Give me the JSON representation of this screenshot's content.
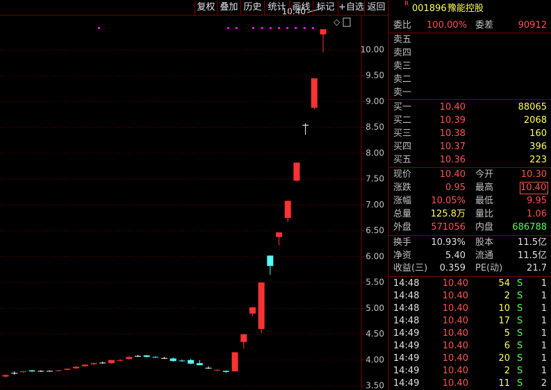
{
  "toolbar": [
    "复权",
    "叠加",
    "历史",
    "统计",
    "画线",
    "标记",
    "+自选",
    "返回"
  ],
  "chart_data": {
    "type": "candlestick",
    "open": [
      3.68,
      3.75,
      3.77,
      3.8,
      3.79,
      3.79,
      3.79,
      3.81,
      3.84,
      3.88,
      3.92,
      3.95,
      3.94,
      3.99,
      4.02,
      4.08,
      4.09,
      4.06,
      4.04,
      4.03,
      3.99,
      4.0,
      3.94,
      3.85,
      3.8,
      3.79,
      3.78,
      4.35,
      4.9,
      4.6,
      6.02,
      6.38,
      6.75,
      7.47,
      8.55,
      8.88,
      10.3
    ],
    "high": [
      3.72,
      3.78,
      3.79,
      3.81,
      3.8,
      3.8,
      3.81,
      3.84,
      3.88,
      3.92,
      3.95,
      3.97,
      4.0,
      4.02,
      4.07,
      4.1,
      4.1,
      4.07,
      4.06,
      4.05,
      4.01,
      4.02,
      4.0,
      3.88,
      3.82,
      3.8,
      4.15,
      4.5,
      5.02,
      5.5,
      6.02,
      6.47,
      7.08,
      7.82,
      8.58,
      9.45,
      10.4
    ],
    "low": [
      3.66,
      3.72,
      3.75,
      3.77,
      3.77,
      3.78,
      3.78,
      3.8,
      3.83,
      3.87,
      3.9,
      3.93,
      3.93,
      3.98,
      4.01,
      4.06,
      4.05,
      4.04,
      4.02,
      3.97,
      3.97,
      3.92,
      3.91,
      3.83,
      3.79,
      3.75,
      3.78,
      4.22,
      4.85,
      4.52,
      5.65,
      6.22,
      6.67,
      7.45,
      8.36,
      8.85,
      9.95
    ],
    "close": [
      3.71,
      3.75,
      3.78,
      3.78,
      3.79,
      3.79,
      3.8,
      3.83,
      3.87,
      3.91,
      3.94,
      3.95,
      4.0,
      4.0,
      4.06,
      4.08,
      4.06,
      4.05,
      4.04,
      3.98,
      3.98,
      3.93,
      3.9,
      3.85,
      3.81,
      3.77,
      4.15,
      4.5,
      5.02,
      5.5,
      5.82,
      6.47,
      7.08,
      7.82,
      8.55,
      9.45,
      10.4
    ],
    "up_color": "#ff3232",
    "down_color": "#54fcfc",
    "flat_color": "#ffffff",
    "ylim": [
      3.42,
      10.67
    ],
    "yticks": [
      {
        "value": 3.5,
        "label": "3.50"
      },
      {
        "value": 4,
        "label": "4.00"
      },
      {
        "value": 4.5,
        "label": "4.50"
      },
      {
        "value": 5,
        "label": "5.00"
      },
      {
        "value": 5.5,
        "label": "5.50"
      },
      {
        "value": 6,
        "label": "6.00"
      },
      {
        "value": 6.5,
        "label": "6.50"
      },
      {
        "value": 7,
        "label": "7.00"
      },
      {
        "value": 7.5,
        "label": "7.50"
      },
      {
        "value": 8,
        "label": "8.00"
      },
      {
        "value": 8.5,
        "label": "8.50"
      },
      {
        "value": 9,
        "label": "9.00"
      },
      {
        "value": 9.5,
        "label": "9.50"
      },
      {
        "value": 10,
        "label": "10.00"
      }
    ],
    "grid": true,
    "annotation": {
      "label": "10.40",
      "value": 10.4
    }
  },
  "stock": {
    "market": "R",
    "code": "001896",
    "name": "豫能控股"
  },
  "ratio": {
    "label": "委比",
    "value": "100.00%",
    "diff_label": "委差",
    "diff": "90912"
  },
  "asks": [
    "卖五",
    "卖四",
    "卖三",
    "卖二",
    "卖一"
  ],
  "bids": [
    {
      "label": "买一",
      "price": "10.40",
      "volume": "88065"
    },
    {
      "label": "买二",
      "price": "10.39",
      "volume": "2068"
    },
    {
      "label": "买三",
      "price": "10.38",
      "volume": "160"
    },
    {
      "label": "买四",
      "price": "10.37",
      "volume": "396"
    },
    {
      "label": "买五",
      "price": "10.36",
      "volume": "223"
    }
  ],
  "quote": [
    [
      {
        "text": "现价"
      },
      {
        "text": "10.40",
        "color": "#ff5050"
      },
      {
        "text": "今开"
      },
      {
        "text": "10.30",
        "color": "#ff5050"
      }
    ],
    [
      {
        "text": "涨跌"
      },
      {
        "text": "0.95",
        "color": "#ff5050"
      },
      {
        "text": "最高"
      },
      {
        "text": "10.40",
        "color": "#ff5050"
      }
    ],
    [
      {
        "text": "涨幅"
      },
      {
        "text": "10.05%",
        "color": "#ff5050"
      },
      {
        "text": "最低"
      },
      {
        "text": "9.95",
        "color": "#ff5050"
      }
    ],
    [
      {
        "text": "总量"
      },
      {
        "text": "125.8万",
        "color": "#ffff54"
      },
      {
        "text": "量比"
      },
      {
        "text": "1.06",
        "color": "#ff5050"
      }
    ],
    [
      {
        "text": "外盘"
      },
      {
        "text": "571056",
        "color": "#ff5050"
      },
      {
        "text": "内盘"
      },
      {
        "text": "686788",
        "color": "#54ff54"
      }
    ],
    [
      {
        "text": "换手"
      },
      {
        "text": "10.93%",
        "color": "#e0e0e0"
      },
      {
        "text": "股本"
      },
      {
        "text": "11.5亿",
        "color": "#e0e0e0"
      }
    ],
    [
      {
        "text": "净资"
      },
      {
        "text": "5.40",
        "color": "#e0e0e0"
      },
      {
        "text": "流通"
      },
      {
        "text": "11.5亿",
        "color": "#e0e0e0"
      }
    ],
    [
      {
        "text": "收益(三)"
      },
      {
        "text": "0.359",
        "color": "#e0e0e0"
      },
      {
        "text": "PE(动)"
      },
      {
        "text": "21.7",
        "color": "#e0e0e0"
      }
    ]
  ],
  "ticks": [
    [
      "14:48",
      "10.40",
      "54",
      "S",
      "1"
    ],
    [
      "14:48",
      "10.40",
      "2",
      "S",
      "1"
    ],
    [
      "14:48",
      "10.40",
      "10",
      "S",
      "1"
    ],
    [
      "14:48",
      "10.40",
      "17",
      "S",
      "1"
    ],
    [
      "14:49",
      "10.40",
      "5",
      "S",
      "1"
    ],
    [
      "14:49",
      "10.40",
      "6",
      "S",
      "1"
    ],
    [
      "14:49",
      "10.40",
      "20",
      "S",
      "1"
    ],
    [
      "14:49",
      "10.40",
      "2",
      "S",
      "1"
    ],
    [
      "14:49",
      "10.40",
      "11",
      "S",
      "2"
    ]
  ]
}
